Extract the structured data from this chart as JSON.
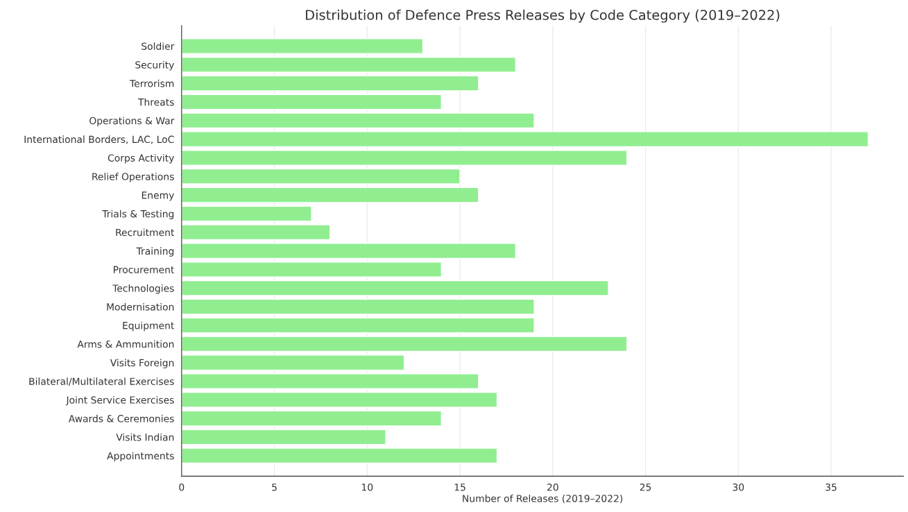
{
  "chart_data": {
    "type": "bar",
    "orientation": "horizontal",
    "title": "Distribution of Defence Press Releases by Code Category (2019–2022)",
    "xlabel": "Number of Releases (2019–2022)",
    "categories": [
      "Soldier",
      "Security",
      "Terrorism",
      "Threats",
      "Operations & War",
      "International Borders, LAC, LoC",
      "Corps Activity",
      "Relief Operations",
      "Enemy",
      "Trials & Testing",
      "Recruitment",
      "Training",
      "Procurement",
      "Technologies",
      "Modernisation",
      "Equipment",
      "Arms & Ammunition",
      "Visits Foreign",
      "Bilateral/Multilateral Exercises",
      "Joint Service Exercises",
      "Awards & Ceremonies",
      "Visits Indian",
      "Appointments"
    ],
    "values": [
      13,
      18,
      16,
      14,
      19,
      37,
      24,
      15,
      16,
      7,
      8,
      18,
      14,
      23,
      19,
      19,
      24,
      12,
      16,
      17,
      14,
      11,
      17
    ],
    "color": "#90ee90",
    "xlim": [
      0,
      38.9
    ],
    "xticks": [
      0,
      5,
      10,
      15,
      20,
      25,
      30,
      35
    ],
    "grid": "x"
  }
}
